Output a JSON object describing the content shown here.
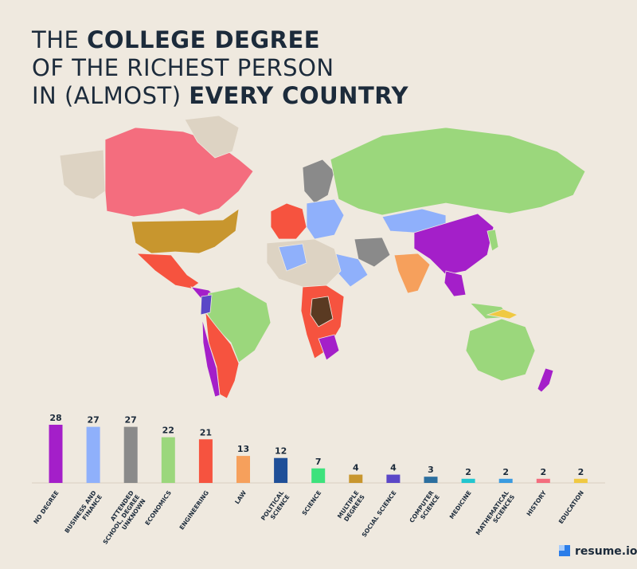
{
  "chart_data": {
    "type": "bar",
    "title_lines": [
      [
        {
          "text": "THE ",
          "bold": false
        },
        {
          "text": "COLLEGE DEGREE",
          "bold": true
        }
      ],
      [
        {
          "text": "OF THE RICHEST PERSON",
          "bold": false
        }
      ],
      [
        {
          "text": "IN (ALMOST) ",
          "bold": false
        },
        {
          "text": "EVERY COUNTRY",
          "bold": true
        }
      ]
    ],
    "categories": [
      "NO DEGREE",
      "BUSINESS AND FINANCE",
      "ATTENDED SCHOOL, DEGREE UNKNOWN",
      "ECONOMICS",
      "ENGINEERING",
      "LAW",
      "POLITICAL SCIENCE",
      "SCIENCE",
      "MULTIPLE DEGREES",
      "SOCIAL SCIENCE",
      "COMPUTER SCIENCE",
      "MEDICINE",
      "MATHEMATICAL SCIENCES",
      "HISTORY",
      "EDUCATION"
    ],
    "values": [
      28,
      27,
      27,
      22,
      21,
      13,
      12,
      7,
      4,
      4,
      3,
      2,
      2,
      2,
      2
    ],
    "colors": [
      "#a41fc9",
      "#8fb0fb",
      "#8a8a8a",
      "#9bd77c",
      "#f6533f",
      "#f6a05c",
      "#1f4f98",
      "#3de27c",
      "#c8962e",
      "#5b47c7",
      "#2c6f9f",
      "#22c6cf",
      "#3a9be0",
      "#f46d7e",
      "#f0c942"
    ],
    "brand": "resume.io"
  }
}
